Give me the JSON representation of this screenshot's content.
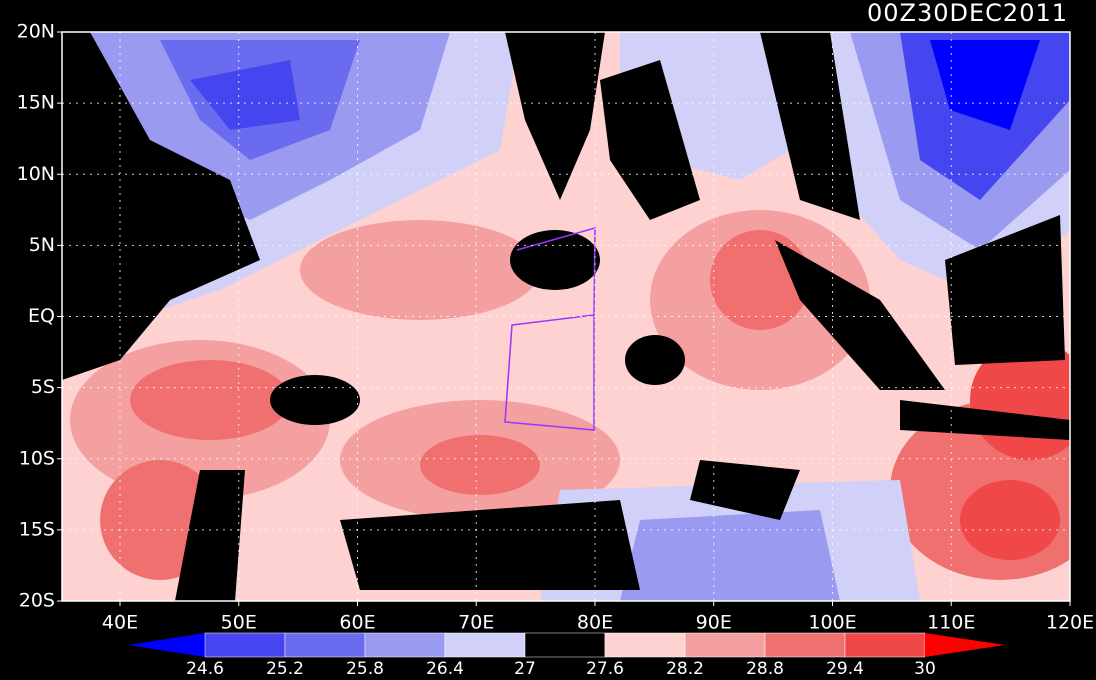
{
  "title": "00Z30DEC2011",
  "lat_labels": [
    "20N",
    "15N",
    "10N",
    "5N",
    "EQ",
    "5S",
    "10S",
    "15S",
    "20S"
  ],
  "lon_labels": [
    "40E",
    "50E",
    "60E",
    "70E",
    "80E",
    "90E",
    "100E",
    "110E",
    "120E"
  ],
  "colorbar": {
    "ticks": [
      24.6,
      25.2,
      25.8,
      26.4,
      27,
      27.6,
      28.2,
      28.8,
      29.4,
      30
    ],
    "colors": [
      "#0000ff",
      "#4646f0",
      "#6b6bf0",
      "#9a9af0",
      "#d0d0f8",
      "#000000",
      "#ffd2d2",
      "#f5a0a0",
      "#f07070",
      "#f04848",
      "#ff0000"
    ]
  }
}
